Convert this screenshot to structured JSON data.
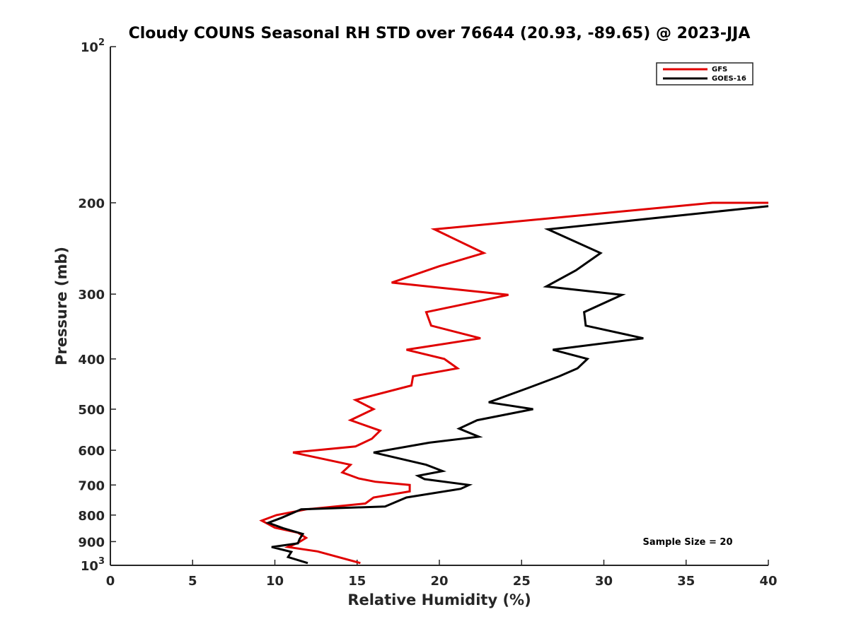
{
  "chart_data": {
    "type": "line",
    "title": "Cloudy COUNS Seasonal RH STD over 76644 (20.93, -89.65) @ 2023-JJA",
    "xlabel": "Relative Humidity (%)",
    "ylabel": "Pressure (mb)",
    "xlim": [
      0,
      40
    ],
    "ylim": [
      100,
      1000
    ],
    "yscale": "log",
    "y_reversed": true,
    "grid": false,
    "legend_position": "top-right",
    "x_ticks": [
      "0",
      "5",
      "10",
      "15",
      "20",
      "25",
      "30",
      "35",
      "40"
    ],
    "y_ticks": [
      {
        "value": 100,
        "base": "10",
        "exp": "2"
      },
      {
        "value": 200,
        "label": "200"
      },
      {
        "value": 300,
        "label": "300"
      },
      {
        "value": 400,
        "label": "400"
      },
      {
        "value": 500,
        "label": "500"
      },
      {
        "value": 600,
        "label": "600"
      },
      {
        "value": 700,
        "label": "700"
      },
      {
        "value": 800,
        "label": "800"
      },
      {
        "value": 900,
        "label": "900"
      },
      {
        "value": 1000,
        "base": "10",
        "exp": "3"
      }
    ],
    "series": [
      {
        "name": "GFS",
        "color": "#e00000",
        "points": [
          [
            40.0,
            200
          ],
          [
            36.6,
            200
          ],
          [
            19.7,
            225
          ],
          [
            22.7,
            250
          ],
          [
            20.0,
            265
          ],
          [
            17.1,
            285
          ],
          [
            24.2,
            301
          ],
          [
            19.2,
            325
          ],
          [
            19.5,
            345
          ],
          [
            22.5,
            365
          ],
          [
            18.0,
            384
          ],
          [
            20.3,
            400
          ],
          [
            21.1,
            417
          ],
          [
            18.4,
            432
          ],
          [
            18.3,
            450
          ],
          [
            14.9,
            480
          ],
          [
            16.0,
            500
          ],
          [
            14.6,
            525
          ],
          [
            16.4,
            550
          ],
          [
            15.9,
            570
          ],
          [
            14.9,
            590
          ],
          [
            11.1,
            606
          ],
          [
            14.6,
            640
          ],
          [
            14.1,
            662
          ],
          [
            15.1,
            680
          ],
          [
            16.1,
            690
          ],
          [
            18.2,
            700
          ],
          [
            18.2,
            720
          ],
          [
            16.0,
            740
          ],
          [
            15.5,
            760
          ],
          [
            11.9,
            780
          ],
          [
            10.1,
            800
          ],
          [
            9.2,
            820
          ],
          [
            10.0,
            846
          ],
          [
            11.4,
            865
          ],
          [
            11.9,
            885
          ],
          [
            11.4,
            905
          ],
          [
            10.8,
            922
          ],
          [
            12.6,
            940
          ],
          [
            15.2,
            990
          ]
        ]
      },
      {
        "name": "GOES-16",
        "color": "#000000",
        "points": [
          [
            40.0,
            203
          ],
          [
            26.6,
            225
          ],
          [
            29.8,
            250
          ],
          [
            28.3,
            270
          ],
          [
            26.5,
            290
          ],
          [
            31.1,
            301
          ],
          [
            28.8,
            325
          ],
          [
            28.9,
            345
          ],
          [
            32.4,
            365
          ],
          [
            26.9,
            384
          ],
          [
            29.0,
            400
          ],
          [
            28.4,
            417
          ],
          [
            27.3,
            432
          ],
          [
            25.4,
            455
          ],
          [
            23.0,
            485
          ],
          [
            25.7,
            500
          ],
          [
            22.3,
            525
          ],
          [
            21.2,
            545
          ],
          [
            22.4,
            565
          ],
          [
            19.4,
            580
          ],
          [
            16.0,
            606
          ],
          [
            19.2,
            640
          ],
          [
            20.2,
            658
          ],
          [
            18.7,
            672
          ],
          [
            19.1,
            682
          ],
          [
            21.8,
            700
          ],
          [
            21.3,
            712
          ],
          [
            18.0,
            740
          ],
          [
            16.7,
            770
          ],
          [
            11.6,
            780
          ],
          [
            10.4,
            810
          ],
          [
            9.6,
            828
          ],
          [
            10.5,
            848
          ],
          [
            11.7,
            870
          ],
          [
            11.5,
            890
          ],
          [
            11.4,
            907
          ],
          [
            9.8,
            922
          ],
          [
            11.0,
            942
          ],
          [
            10.8,
            964
          ],
          [
            12.0,
            990
          ]
        ]
      }
    ],
    "annotations": [
      "Sample Size = 20"
    ]
  }
}
